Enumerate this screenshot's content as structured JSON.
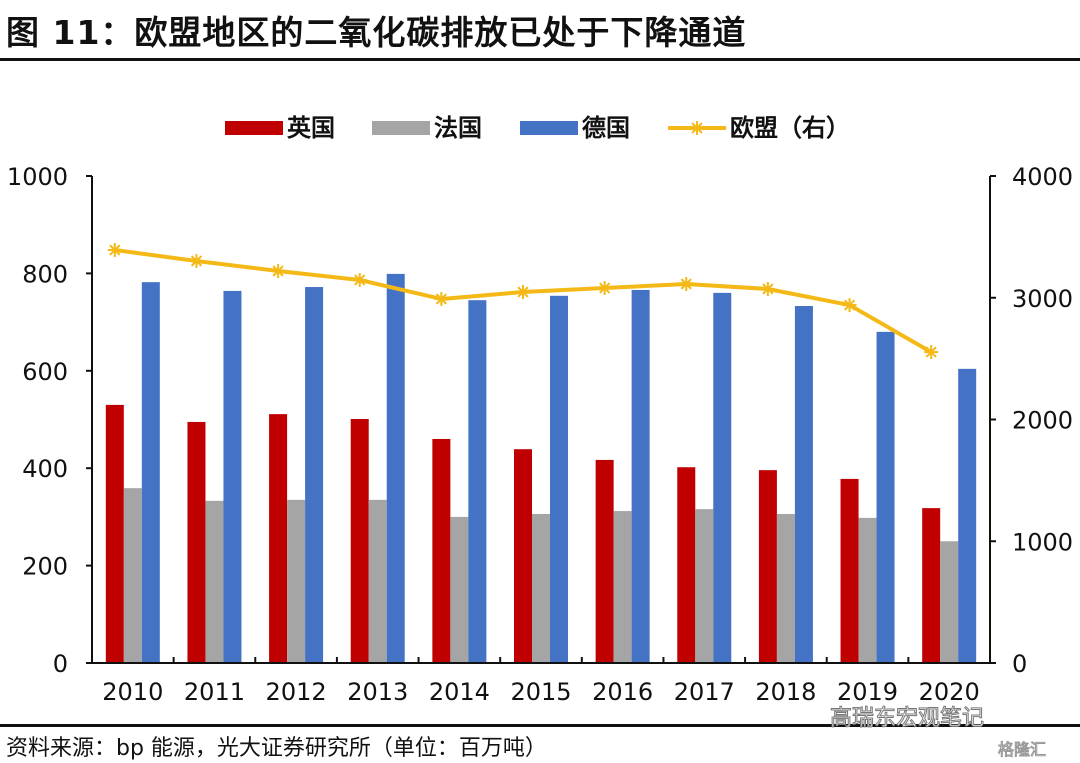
{
  "header": {
    "title": "图 11：欧盟地区的二氧化碳排放已处于下降通道"
  },
  "footer": {
    "source": "资料来源：bp 能源，光大证券研究所（单位：百万吨）",
    "watermark_primary": "高瑞东宏观笔记",
    "watermark_secondary": "格隆汇"
  },
  "chart_data": {
    "type": "bar",
    "title": "图 11：欧盟地区的二氧化碳排放已处于下降通道",
    "xlabel": "",
    "ylabel": "",
    "categories": [
      "2010",
      "2011",
      "2012",
      "2013",
      "2014",
      "2015",
      "2016",
      "2017",
      "2018",
      "2019",
      "2020"
    ],
    "ylim": [
      0,
      1000
    ],
    "y2lim": [
      0,
      4000
    ],
    "yticks": [
      "0",
      "200",
      "400",
      "600",
      "800",
      "1000"
    ],
    "y2ticks": [
      "0",
      "1000",
      "2000",
      "3000",
      "4000"
    ],
    "grid": false,
    "legend_position": "top",
    "series": [
      {
        "name": "英国",
        "type": "bar",
        "axis": "left",
        "color": "#C00000",
        "values": [
          530,
          495,
          511,
          501,
          460,
          439,
          417,
          402,
          396,
          378,
          318
        ]
      },
      {
        "name": "法国",
        "type": "bar",
        "axis": "left",
        "color": "#A5A5A5",
        "values": [
          359,
          333,
          335,
          335,
          300,
          306,
          312,
          316,
          306,
          298,
          250
        ]
      },
      {
        "name": "德国",
        "type": "bar",
        "axis": "left",
        "color": "#4472C4",
        "values": [
          782,
          764,
          772,
          799,
          745,
          754,
          766,
          760,
          733,
          680,
          604
        ]
      },
      {
        "name": "欧盟（右）",
        "type": "line",
        "axis": "right",
        "color": "#F4B916",
        "values": [
          3392,
          3302,
          3220,
          3146,
          2990,
          3047,
          3080,
          3113,
          3072,
          2940,
          2554
        ]
      }
    ]
  }
}
